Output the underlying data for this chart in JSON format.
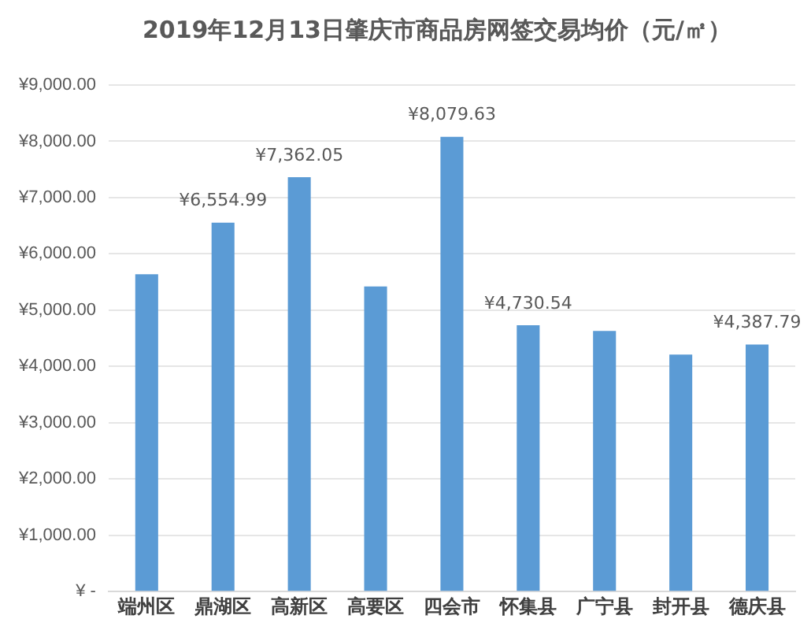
{
  "chart_data": {
    "type": "bar",
    "title": "2019年12月13日肇庆市商品房网签交易均价（元/㎡）",
    "categories": [
      "端州区",
      "鼎湖区",
      "高新区",
      "高要区",
      "四会市",
      "怀集县",
      "广宁县",
      "封开县",
      "德庆县"
    ],
    "values": [
      5640,
      6554.99,
      7362.05,
      5420,
      8079.63,
      4730.54,
      4630,
      4210,
      4387.79
    ],
    "value_labels": [
      null,
      "¥6,554.99",
      "¥7,362.05",
      null,
      "¥8,079.63",
      "¥4,730.54",
      null,
      null,
      "¥4,387.79"
    ],
    "color": "#5b9bd5",
    "ylim": [
      0,
      9000
    ],
    "yticks": [
      {
        "value": 0,
        "label": "¥ -"
      },
      {
        "value": 1000,
        "label": "¥1,000.00"
      },
      {
        "value": 2000,
        "label": "¥2,000.00"
      },
      {
        "value": 3000,
        "label": "¥3,000.00"
      },
      {
        "value": 4000,
        "label": "¥4,000.00"
      },
      {
        "value": 5000,
        "label": "¥5,000.00"
      },
      {
        "value": 6000,
        "label": "¥6,000.00"
      },
      {
        "value": 7000,
        "label": "¥7,000.00"
      },
      {
        "value": 8000,
        "label": "¥8,000.00"
      },
      {
        "value": 9000,
        "label": "¥9,000.00"
      }
    ],
    "grid": "y"
  }
}
